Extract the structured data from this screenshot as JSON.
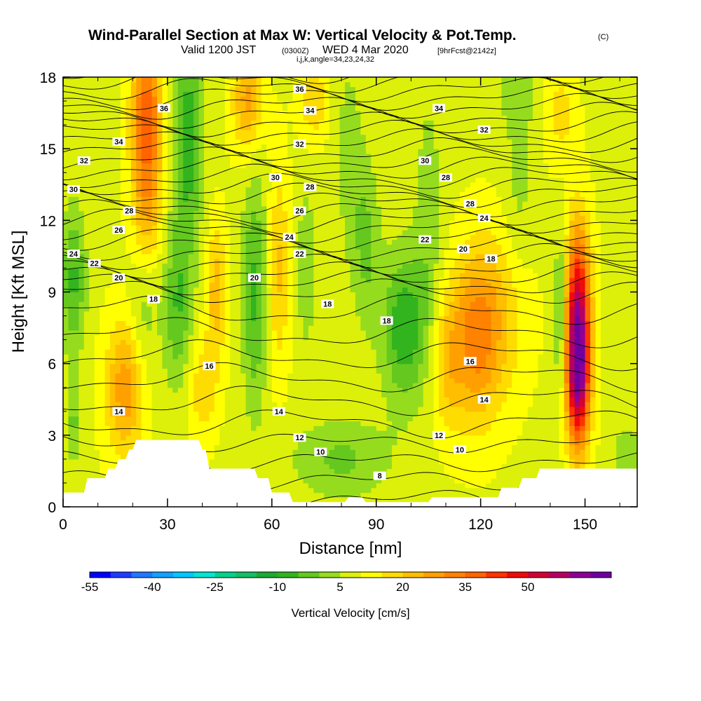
{
  "figure": {
    "title": "Wind-Parallel Section at Max W: Vertical Velocity & Pot.Temp.",
    "copyright": "(C)",
    "subtitle_pre": "Valid 1200 JST",
    "subtitle_utc": "(0300Z)",
    "subtitle_date": "WED 4 Mar 2020",
    "subtitle_fcst": "[9hrFcst@2142z]",
    "indices": "i,j,k,angle=34,23,24,32"
  },
  "colorbar": {
    "label": "Vertical Velocity [cm/s]",
    "tick_labels": [
      "-55",
      "-40",
      "-25",
      "-10",
      "5",
      "20",
      "35",
      "50"
    ],
    "levels": [
      -55,
      -50,
      -45,
      -40,
      -35,
      -30,
      -25,
      -20,
      -15,
      -10,
      -5,
      0,
      5,
      10,
      15,
      20,
      25,
      30,
      35,
      40,
      45,
      50,
      55,
      60
    ],
    "colors": [
      "#0000ff",
      "#1e3cff",
      "#1e78ff",
      "#14a0ff",
      "#00c8ff",
      "#00e6d2",
      "#00d28c",
      "#14be64",
      "#1eaa32",
      "#32b41e",
      "#64c81e",
      "#96dc1e",
      "#dcf00a",
      "#ffff00",
      "#ffdc00",
      "#ffbe00",
      "#ffa000",
      "#ff8200",
      "#ff6400",
      "#ff3200",
      "#f00a0a",
      "#d20032",
      "#b40064",
      "#8c0096",
      "#6e00a0"
    ]
  },
  "chart_data": {
    "type": "heatmap",
    "title": "Wind-Parallel Section at Max W: Vertical Velocity & Pot.Temp.",
    "xlabel": "Distance [nm]",
    "ylabel": "Height [Kft MSL]",
    "xlim": [
      0,
      165
    ],
    "ylim": [
      0,
      18
    ],
    "xticks": [
      0,
      30,
      60,
      90,
      120,
      150
    ],
    "yticks": [
      0,
      3,
      6,
      9,
      12,
      15,
      18
    ],
    "field": "vertical velocity (cm/s), shaded",
    "features": [
      {
        "x": 3,
        "y": 9.5,
        "w": -15,
        "sx": 2.5,
        "sy": 2.2
      },
      {
        "x": 3,
        "y": 3.5,
        "w": -10,
        "sx": 1.5,
        "sy": 1.2
      },
      {
        "x": 24,
        "y": 16.5,
        "w": 28,
        "sx": 3,
        "sy": 2.2
      },
      {
        "x": 24,
        "y": 12.5,
        "w": 15,
        "sx": 3,
        "sy": 2
      },
      {
        "x": 36,
        "y": 15.5,
        "w": -18,
        "sx": 3,
        "sy": 3
      },
      {
        "x": 33,
        "y": 8.5,
        "w": -14,
        "sx": 3,
        "sy": 2.5
      },
      {
        "x": 23,
        "y": 8,
        "w": -8,
        "sx": 3,
        "sy": 2.5
      },
      {
        "x": 18,
        "y": 5,
        "w": 20,
        "sx": 4,
        "sy": 2
      },
      {
        "x": 44,
        "y": 9,
        "w": 14,
        "sx": 2,
        "sy": 2
      },
      {
        "x": 40,
        "y": 5,
        "w": 10,
        "sx": 3,
        "sy": 1.5
      },
      {
        "x": 53,
        "y": 17,
        "w": 18,
        "sx": 3,
        "sy": 1.5
      },
      {
        "x": 55,
        "y": 9,
        "w": -15,
        "sx": 2.5,
        "sy": 3.5
      },
      {
        "x": 62,
        "y": 10,
        "w": 12,
        "sx": 2,
        "sy": 3
      },
      {
        "x": 70,
        "y": 10,
        "w": -8,
        "sx": 2,
        "sy": 2.5
      },
      {
        "x": 82,
        "y": 15,
        "w": -6,
        "sx": 3,
        "sy": 3
      },
      {
        "x": 72,
        "y": 17,
        "w": 10,
        "sx": 3,
        "sy": 1.2
      },
      {
        "x": 98,
        "y": 7.5,
        "w": -18,
        "sx": 4.5,
        "sy": 2.2
      },
      {
        "x": 87,
        "y": 11,
        "w": -10,
        "sx": 3,
        "sy": 2.5
      },
      {
        "x": 80,
        "y": 2,
        "w": -10,
        "sx": 10,
        "sy": 1.2
      },
      {
        "x": 105,
        "y": 12,
        "w": -7,
        "sx": 3,
        "sy": 4
      },
      {
        "x": 118,
        "y": 7,
        "w": 20,
        "sx": 5,
        "sy": 2.5
      },
      {
        "x": 110,
        "y": 6,
        "w": 10,
        "sx": 3,
        "sy": 2
      },
      {
        "x": 125,
        "y": 8,
        "w": 10,
        "sx": 6,
        "sy": 2.5
      },
      {
        "x": 131,
        "y": 14,
        "w": -6,
        "sx": 3,
        "sy": 3
      },
      {
        "x": 148,
        "y": 8,
        "w": 45,
        "sx": 2.5,
        "sy": 2.6
      },
      {
        "x": 148,
        "y": 5,
        "w": 35,
        "sx": 2.3,
        "sy": 2
      },
      {
        "x": 143,
        "y": 8,
        "w": -15,
        "sx": 1.2,
        "sy": 2.5
      },
      {
        "x": 130,
        "y": 17.5,
        "w": -6,
        "sx": 4,
        "sy": 1
      },
      {
        "x": 143,
        "y": 16.5,
        "w": 8,
        "sx": 3,
        "sy": 1.5
      },
      {
        "x": 162,
        "y": 2,
        "w": -8,
        "sx": 3,
        "sy": 1
      }
    ],
    "terrain": [
      {
        "x": 0,
        "h": 0.6
      },
      {
        "x": 6,
        "h": 0.6
      },
      {
        "x": 7,
        "h": 1.2
      },
      {
        "x": 12,
        "h": 1.2
      },
      {
        "x": 13,
        "h": 1.6
      },
      {
        "x": 15,
        "h": 1.6
      },
      {
        "x": 16,
        "h": 2.0
      },
      {
        "x": 18,
        "h": 2.0
      },
      {
        "x": 19,
        "h": 2.4
      },
      {
        "x": 20,
        "h": 2.4
      },
      {
        "x": 21,
        "h": 2.8
      },
      {
        "x": 39,
        "h": 2.8
      },
      {
        "x": 40,
        "h": 2.4
      },
      {
        "x": 41,
        "h": 2.4
      },
      {
        "x": 42,
        "h": 1.6
      },
      {
        "x": 55,
        "h": 1.6
      },
      {
        "x": 56,
        "h": 1.2
      },
      {
        "x": 59,
        "h": 1.2
      },
      {
        "x": 60,
        "h": 0.6
      },
      {
        "x": 65,
        "h": 0.6
      },
      {
        "x": 66,
        "h": 0.2
      },
      {
        "x": 81,
        "h": 0.2
      },
      {
        "x": 82,
        "h": 0.4
      },
      {
        "x": 86,
        "h": 0.4
      },
      {
        "x": 87,
        "h": 0.2
      },
      {
        "x": 105,
        "h": 0.2
      },
      {
        "x": 106,
        "h": 0.4
      },
      {
        "x": 125,
        "h": 0.4
      },
      {
        "x": 126,
        "h": 0.8
      },
      {
        "x": 131,
        "h": 0.8
      },
      {
        "x": 132,
        "h": 1.2
      },
      {
        "x": 136,
        "h": 1.2
      },
      {
        "x": 137,
        "h": 1.6
      },
      {
        "x": 165,
        "h": 1.6
      }
    ],
    "theta_contours": {
      "label_positions": [
        {
          "text": "36",
          "x": 29,
          "y": 16.7
        },
        {
          "text": "36",
          "x": 68,
          "y": 17.5
        },
        {
          "text": "34",
          "x": 16,
          "y": 15.3
        },
        {
          "text": "34",
          "x": 71,
          "y": 16.6
        },
        {
          "text": "34",
          "x": 108,
          "y": 16.7
        },
        {
          "text": "32",
          "x": 6,
          "y": 14.5
        },
        {
          "text": "32",
          "x": 68,
          "y": 15.2
        },
        {
          "text": "32",
          "x": 121,
          "y": 15.8
        },
        {
          "text": "30",
          "x": 3,
          "y": 13.3
        },
        {
          "text": "30",
          "x": 61,
          "y": 13.8
        },
        {
          "text": "30",
          "x": 104,
          "y": 14.5
        },
        {
          "text": "28",
          "x": 19,
          "y": 12.4
        },
        {
          "text": "28",
          "x": 71,
          "y": 13.4
        },
        {
          "text": "28",
          "x": 110,
          "y": 13.8
        },
        {
          "text": "28",
          "x": 117,
          "y": 12.7
        },
        {
          "text": "26",
          "x": 16,
          "y": 11.6
        },
        {
          "text": "26",
          "x": 68,
          "y": 12.4
        },
        {
          "text": "24",
          "x": 3,
          "y": 10.6
        },
        {
          "text": "24",
          "x": 65,
          "y": 11.3
        },
        {
          "text": "24",
          "x": 121,
          "y": 12.1
        },
        {
          "text": "22",
          "x": 9,
          "y": 10.2
        },
        {
          "text": "22",
          "x": 68,
          "y": 10.6
        },
        {
          "text": "22",
          "x": 104,
          "y": 11.2
        },
        {
          "text": "20",
          "x": 16,
          "y": 9.6
        },
        {
          "text": "20",
          "x": 55,
          "y": 9.6
        },
        {
          "text": "20",
          "x": 115,
          "y": 10.8
        },
        {
          "text": "18",
          "x": 123,
          "y": 10.4
        },
        {
          "text": "18",
          "x": 26,
          "y": 8.7
        },
        {
          "text": "18",
          "x": 76,
          "y": 8.5
        },
        {
          "text": "18",
          "x": 93,
          "y": 7.8
        },
        {
          "text": "16",
          "x": 42,
          "y": 5.9
        },
        {
          "text": "16",
          "x": 117,
          "y": 6.1
        },
        {
          "text": "14",
          "x": 16,
          "y": 4.0
        },
        {
          "text": "14",
          "x": 62,
          "y": 4.0
        },
        {
          "text": "14",
          "x": 121,
          "y": 4.5
        },
        {
          "text": "12",
          "x": 68,
          "y": 2.9
        },
        {
          "text": "12",
          "x": 108,
          "y": 3.0
        },
        {
          "text": "10",
          "x": 74,
          "y": 2.3
        },
        {
          "text": "10",
          "x": 114,
          "y": 2.4
        },
        {
          "text": "8",
          "x": 91,
          "y": 1.3
        }
      ]
    }
  }
}
